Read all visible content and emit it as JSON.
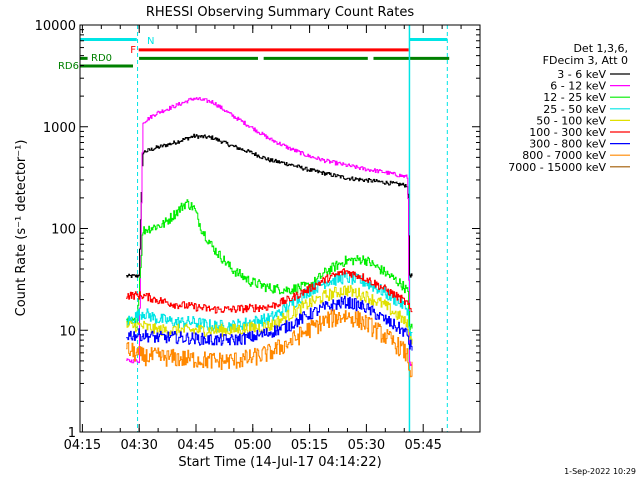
{
  "chart_data": {
    "type": "line",
    "title": "RHESSI Observing Summary Count Rates",
    "xlabel": "Start Time (14-Jul-17 04:14:22)",
    "ylabel": "Count Rate (s⁻¹ detector⁻¹)",
    "yscale": "log",
    "xlim_minutes": [
      0,
      105.63
    ],
    "ylim": [
      1,
      10000
    ],
    "x_ticks": [
      {
        "label": "04:15",
        "t": 0.63
      },
      {
        "label": "04:30",
        "t": 15.63
      },
      {
        "label": "04:45",
        "t": 30.63
      },
      {
        "label": "05:00",
        "t": 45.63
      },
      {
        "label": "05:15",
        "t": 60.63
      },
      {
        "label": "05:30",
        "t": 75.63
      },
      {
        "label": "05:45",
        "t": 90.63
      }
    ],
    "y_ticks": [
      {
        "label": "1",
        "value": 1
      },
      {
        "label": "10",
        "value": 10
      },
      {
        "label": "100",
        "value": 100
      },
      {
        "label": "1000",
        "value": 1000
      },
      {
        "label": "10000",
        "value": 10000
      }
    ],
    "legend_header": [
      "Det 1,3,6,",
      "FDecim 3, Att 0"
    ],
    "legend_position": "right",
    "date_stamp": "1-Sep-2022 10:29",
    "data_window_minutes": [
      12.2,
      87.8
    ],
    "series": [
      {
        "name": "3 - 6 keV",
        "color": "#000000",
        "x": [
          12.2,
          15.0,
          15.5,
          16.5,
          20,
          25,
          30,
          35,
          40,
          45,
          50,
          55,
          60,
          65,
          70,
          75,
          80,
          83,
          86.5,
          87,
          87.8
        ],
        "y": [
          34,
          34,
          35,
          560,
          620,
          700,
          810,
          780,
          650,
          560,
          470,
          430,
          380,
          345,
          315,
          300,
          285,
          275,
          265,
          35,
          34
        ]
      },
      {
        "name": "6 - 12 keV",
        "color": "#ff00ff",
        "x": [
          12.2,
          15.0,
          15.5,
          16.5,
          20,
          25,
          30,
          35,
          40,
          45,
          50,
          55,
          60,
          65,
          70,
          75,
          80,
          83,
          86.5,
          87,
          87.8
        ],
        "y": [
          5,
          5,
          5,
          1100,
          1350,
          1600,
          1900,
          1750,
          1300,
          1000,
          760,
          620,
          520,
          460,
          420,
          385,
          360,
          340,
          320,
          5,
          4
        ]
      },
      {
        "name": "12 - 25 keV",
        "color": "#00ee00",
        "x": [
          12.2,
          15.0,
          16.5,
          18,
          22,
          25,
          28,
          30,
          32,
          35,
          40,
          45,
          50,
          55,
          60,
          62,
          65,
          70,
          75,
          80,
          85,
          86.5,
          87,
          87.8
        ],
        "y": [
          12,
          12,
          95,
          100,
          110,
          140,
          180,
          160,
          100,
          65,
          40,
          30,
          26,
          25,
          27,
          30,
          38,
          48,
          50,
          38,
          28,
          24,
          11,
          10
        ]
      },
      {
        "name": "25 - 50 keV",
        "color": "#00e5e5",
        "x": [
          12.2,
          16.5,
          20,
          25,
          30,
          35,
          40,
          45,
          50,
          55,
          60,
          65,
          70,
          75,
          80,
          85,
          86.5,
          87,
          87.8
        ],
        "y": [
          12,
          15,
          13,
          12,
          12,
          11,
          11,
          12,
          13,
          17,
          24,
          30,
          33,
          30,
          24,
          18,
          16,
          9,
          9
        ]
      },
      {
        "name": "50 - 100 keV",
        "color": "#e0e000",
        "x": [
          12.2,
          16.5,
          20,
          25,
          30,
          35,
          40,
          45,
          50,
          55,
          60,
          65,
          70,
          75,
          80,
          85,
          86.5,
          87,
          87.8
        ],
        "y": [
          11,
          11,
          10,
          10,
          10,
          10,
          10,
          10.5,
          11,
          14,
          18,
          22,
          25,
          22,
          18,
          13,
          11,
          8,
          8
        ]
      },
      {
        "name": "100 - 300 keV",
        "color": "#ff0000",
        "x": [
          12.2,
          16.5,
          20,
          25,
          30,
          35,
          40,
          45,
          50,
          55,
          60,
          65,
          70,
          75,
          80,
          85,
          86.5,
          87,
          87.8
        ],
        "y": [
          22,
          22,
          20,
          18,
          17,
          16,
          16,
          16.5,
          17,
          20,
          25,
          32,
          38,
          33,
          26,
          20,
          18,
          16,
          15
        ]
      },
      {
        "name": "300 - 800 keV",
        "color": "#0000ff",
        "x": [
          12.2,
          16.5,
          20,
          25,
          30,
          35,
          40,
          45,
          50,
          55,
          60,
          65,
          70,
          75,
          80,
          85,
          86.5,
          87,
          87.8
        ],
        "y": [
          9,
          9,
          8.5,
          8.5,
          8.3,
          8.0,
          8.0,
          8.5,
          9.5,
          11,
          14,
          17,
          19,
          17,
          13,
          10,
          9,
          7,
          7
        ]
      },
      {
        "name": "800 - 7000 keV",
        "color": "#ff8800",
        "x": [
          12.2,
          16.5,
          20,
          25,
          30,
          35,
          40,
          45,
          50,
          55,
          60,
          65,
          70,
          75,
          80,
          85,
          86.5,
          87,
          87.8
        ],
        "y": [
          6.5,
          5.5,
          5.5,
          5.3,
          5.2,
          5.0,
          5.0,
          5.3,
          6.0,
          7.5,
          10,
          12.5,
          14,
          12,
          9,
          6.5,
          5.5,
          4,
          4
        ]
      },
      {
        "name": "7000 - 15000 keV",
        "color": "#a05a00",
        "x": [],
        "y": []
      }
    ],
    "bars": [
      {
        "label": "N",
        "color": "#00e5e5",
        "y": 7200,
        "segments": [
          [
            0,
            15.0
          ],
          [
            87,
            97.0
          ]
        ]
      },
      {
        "label": "F",
        "color": "#ff0000",
        "y": 5700,
        "segments": [
          [
            15.5,
            86.8
          ]
        ]
      },
      {
        "label": "RD0",
        "color": "#008000",
        "y": 4700,
        "segments": [
          [
            0,
            2.0
          ],
          [
            15.6,
            47.0
          ],
          [
            48.5,
            76.0
          ],
          [
            77.5,
            97.5
          ]
        ]
      },
      {
        "label": "RD6",
        "color": "#008000",
        "y": 3950,
        "segments": [
          [
            0,
            14.0
          ]
        ]
      }
    ],
    "vertical_markers": [
      {
        "t": 0.0,
        "style": "dashed",
        "color": "#00e5e5"
      },
      {
        "t": 15.2,
        "style": "dashed",
        "color": "#00e5e5"
      },
      {
        "t": 87.0,
        "style": "solid",
        "color": "#00e5e5"
      },
      {
        "t": 97.0,
        "style": "dashed",
        "color": "#00e5e5"
      }
    ]
  }
}
